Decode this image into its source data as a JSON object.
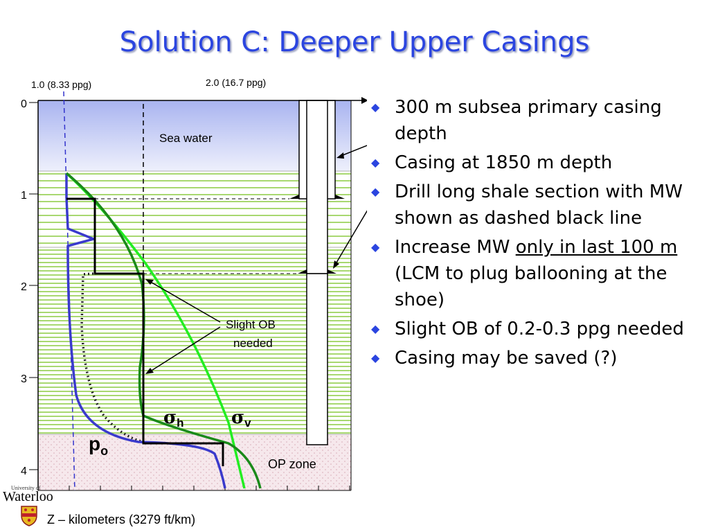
{
  "slide": {
    "title": "Solution C: Deeper Upper Casings"
  },
  "diagram": {
    "top_axis_labels": [
      "1.0 (8.33 ppg)",
      "2.0 (16.7 ppg)"
    ],
    "depth_ticks": [
      "0",
      "1",
      "2",
      "3",
      "4"
    ],
    "sea_water_label": "Sea water",
    "op_zone_label": "OP zone",
    "annotation": [
      "Slight OB",
      "needed"
    ],
    "sigma_h_symbol": "σ",
    "sigma_h_sub": "h",
    "sigma_v_symbol": "σ",
    "sigma_v_sub": "v",
    "po_symbol": "p",
    "po_sub": "o",
    "z_axis_label": "Z – kilometers (3279 ft/km)"
  },
  "bullets": [
    {
      "text": "300 m subsea primary casing depth"
    },
    {
      "text": "Casing at 1850 m depth"
    },
    {
      "text": "Drill long shale section with MW shown as dashed black line"
    },
    {
      "pre": "Increase MW ",
      "underlined": "only in last 100 m",
      "post": " (LCM to plug ballooning at the shoe)"
    },
    {
      "text": "Slight OB of 0.2-0.3 ppg needed"
    },
    {
      "text": "Casing may be saved (?)"
    }
  ],
  "logo": {
    "university": "University of",
    "name": "Waterloo"
  },
  "colors": {
    "title": "#2b45e0",
    "sea_water": "#c8d0f5",
    "shale_lines": "#a8d870",
    "sigma_v": "#22ee22",
    "sigma_h": "#1a8a1a",
    "pore_pressure": "#3a3acc",
    "op_zone": "#f2e2e6"
  },
  "icons": {
    "bullet": "diamond-bullet-icon",
    "logo_crest": "shield-crest-icon"
  }
}
